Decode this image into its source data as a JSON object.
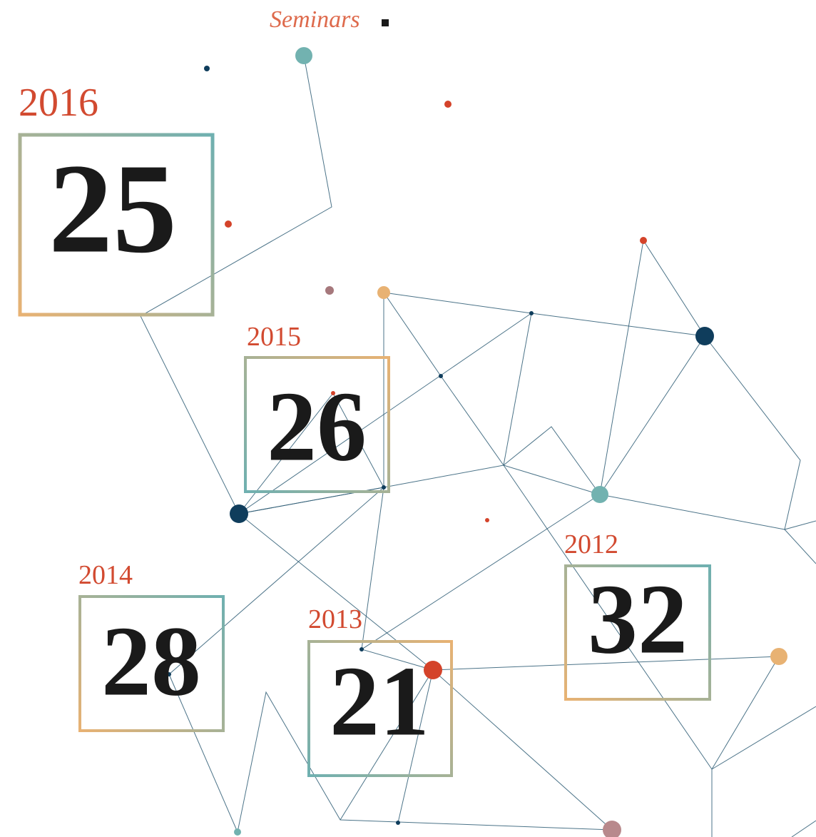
{
  "header": {
    "title": "Seminars"
  },
  "items": [
    {
      "year": "2016",
      "count": 25
    },
    {
      "year": "2015",
      "count": 26
    },
    {
      "year": "2014",
      "count": 28
    },
    {
      "year": "2013",
      "count": 21
    },
    {
      "year": "2012",
      "count": 32
    }
  ]
}
